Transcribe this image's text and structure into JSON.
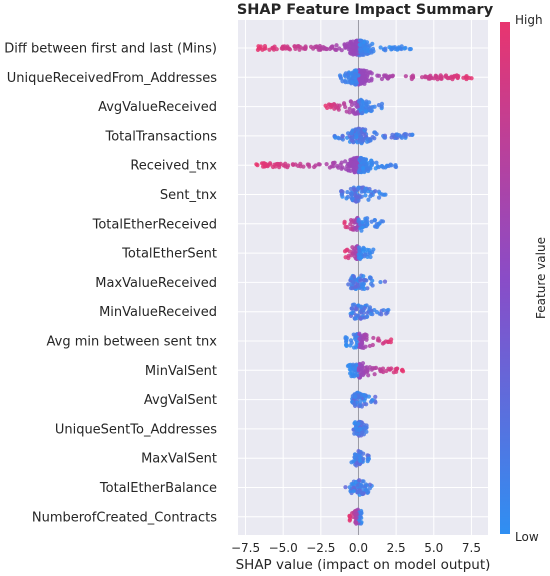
{
  "chart_data": {
    "type": "scatter",
    "subtype": "shap-beeswarm",
    "title": "SHAP Feature Impact Summary",
    "xlabel": "SHAP value (impact on model output)",
    "xlim": [
      -8.0,
      8.6
    ],
    "xticks": [
      -7.5,
      -5.0,
      -2.5,
      0.0,
      2.5,
      5.0,
      7.5
    ],
    "xtick_labels": [
      "−7.5",
      "−5.0",
      "−2.5",
      "0.0",
      "2.5",
      "5.0",
      "7.5"
    ],
    "grid": true,
    "colorbar": {
      "label": "Feature value",
      "high_label": "High",
      "low_label": "Low",
      "high_color": "#e8356f",
      "low_color": "#2f8ff2"
    },
    "features": [
      {
        "name": "Time Diff between first and last (Mins)",
        "min": -6.8,
        "max": 3.5,
        "high_side": "negative"
      },
      {
        "name": "UniqueReceivedFrom_Addresses",
        "min": -1.3,
        "max": 7.8,
        "high_side": "positive"
      },
      {
        "name": "AvgValueReceived",
        "min": -2.2,
        "max": 1.6,
        "high_side": "negative"
      },
      {
        "name": "TotalTransactions",
        "min": -1.6,
        "max": 3.6,
        "high_side": "none"
      },
      {
        "name": "Received_tnx",
        "min": -6.8,
        "max": 2.5,
        "high_side": "negative"
      },
      {
        "name": "Sent_tnx",
        "min": -1.4,
        "max": 1.8,
        "high_side": "none"
      },
      {
        "name": "TotalEtherReceived",
        "min": -1.0,
        "max": 1.8,
        "high_side": "negative"
      },
      {
        "name": "TotalEtherSent",
        "min": -0.9,
        "max": 1.0,
        "high_side": "negative"
      },
      {
        "name": "MaxValueReceived",
        "min": -0.8,
        "max": 1.8,
        "high_side": "none"
      },
      {
        "name": "MinValueReceived",
        "min": -0.6,
        "max": 2.0,
        "high_side": "none"
      },
      {
        "name": "Avg min between sent tnx",
        "min": -0.9,
        "max": 2.3,
        "high_side": "positive"
      },
      {
        "name": "MinValSent",
        "min": -0.7,
        "max": 3.0,
        "high_side": "positive"
      },
      {
        "name": "AvgValSent",
        "min": -0.5,
        "max": 1.2,
        "high_side": "none"
      },
      {
        "name": "UniqueSentTo_Addresses",
        "min": -0.4,
        "max": 0.6,
        "high_side": "none"
      },
      {
        "name": "MaxValSent",
        "min": -0.5,
        "max": 0.7,
        "high_side": "none"
      },
      {
        "name": "TotalEtherBalance",
        "min": -0.9,
        "max": 0.9,
        "high_side": "none"
      },
      {
        "name": "NumberofCreated_Contracts",
        "min": -0.6,
        "max": 0.2,
        "high_side": "negative"
      }
    ]
  }
}
